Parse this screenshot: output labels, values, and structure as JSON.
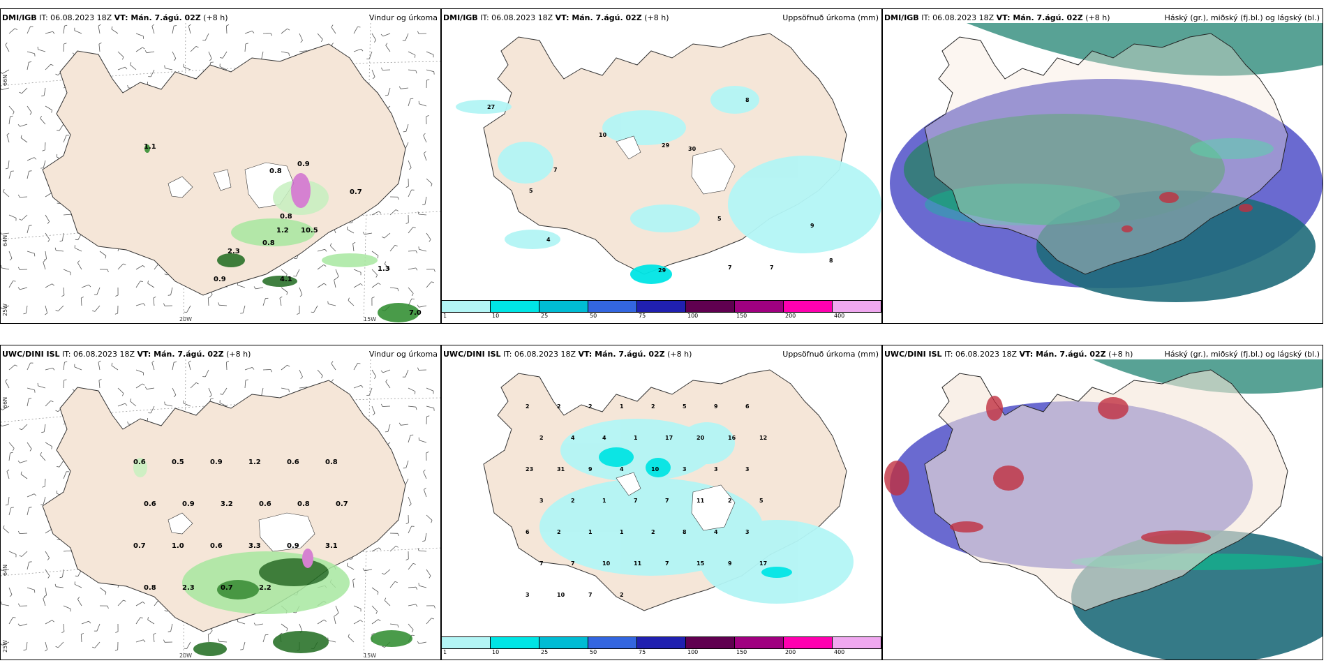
{
  "panels": {
    "p1": {
      "model": "DMI/IGB",
      "it": "IT: 06.08.2023 18Z",
      "vt": "VT: Mán. 7.ágú. 02Z",
      "offset": "(+8 h)",
      "field": "Vindur og úrkoma"
    },
    "p2": {
      "model": "DMI/IGB",
      "it": "IT: 06.08.2023 18Z",
      "vt": "VT: Mán. 7.ágú. 02Z",
      "offset": "(+8 h)",
      "field": "Uppsöfnuð úrkoma (mm)"
    },
    "p3": {
      "model": "DMI/IGB",
      "it": "IT: 06.08.2023 18Z",
      "vt": "VT: Mán. 7.ágú. 02Z",
      "offset": "(+8 h)",
      "field": "Háský (gr.), miðský (fj.bl.) og lágský (bl.)"
    },
    "p4": {
      "model": "UWC/DINI ISL",
      "it": "IT: 06.08.2023 18Z",
      "vt": "VT: Mán. 7.ágú. 02Z",
      "offset": "(+8 h)",
      "field": "Vindur og úrkoma"
    },
    "p5": {
      "model": "UWC/DINI ISL",
      "it": "IT: 06.08.2023 18Z",
      "vt": "VT: Mán. 7.ágú. 02Z",
      "offset": "(+8 h)",
      "field": "Uppsöfnuð úrkoma (mm)"
    },
    "p6": {
      "model": "UWC/DINI ISL",
      "it": "IT: 06.08.2023 18Z",
      "vt": "VT: Mán. 7.ágú. 02Z",
      "offset": "(+8 h)",
      "field": "Háský (gr.), miðský (fj.bl.) og lágský (bl.)"
    }
  },
  "axes": {
    "lat66": "66N",
    "lat64": "64N",
    "lon20": "20W",
    "lon15": "15W",
    "lon25": "25W"
  },
  "colorbar": {
    "labels": [
      "1",
      "10",
      "25",
      "50",
      "75",
      "100",
      "150",
      "200",
      "400"
    ],
    "colors": [
      "#b3f5f5",
      "#00e5e5",
      "#00bcd4",
      "#3366e0",
      "#2020b0",
      "#600050",
      "#a00080",
      "#ff00b0",
      "#f0a8f0"
    ]
  },
  "precip_labels_top": [
    "27",
    "10",
    "29",
    "30",
    "8",
    "7",
    "5",
    "4",
    "5",
    "9",
    "29",
    "7",
    "7",
    "8"
  ],
  "precip_labels_bottom": [
    "2",
    "2",
    "2",
    "1",
    "2",
    "5",
    "9",
    "6",
    "2",
    "4",
    "4",
    "1",
    "17",
    "20",
    "16",
    "12",
    "23",
    "31",
    "9",
    "4",
    "10",
    "3",
    "3",
    "3",
    "3",
    "2",
    "1",
    "7",
    "7",
    "11",
    "2",
    "5",
    "6",
    "2",
    "1",
    "1",
    "2",
    "8",
    "4",
    "3",
    "7",
    "7",
    "10",
    "11",
    "7",
    "15",
    "9",
    "17",
    "3",
    "10",
    "7",
    "2"
  ],
  "wind_labels_top": [
    "1.1",
    "0.8",
    "0.9",
    "0.7",
    "0.8",
    "0.8",
    "1.2",
    "10.5",
    "2.3",
    "0.9",
    "4.1",
    "1.3",
    "7.0"
  ],
  "wind_labels_bottom": [
    "0.6",
    "0.5",
    "0.9",
    "1.2",
    "0.6",
    "0.8",
    "0.6",
    "0.9",
    "3.2",
    "0.6",
    "0.8",
    "0.7",
    "0.7",
    "1.0",
    "0.6",
    "3.3",
    "0.9",
    "3.1",
    "0.8",
    "2.3",
    "0.7",
    "2.2"
  ]
}
